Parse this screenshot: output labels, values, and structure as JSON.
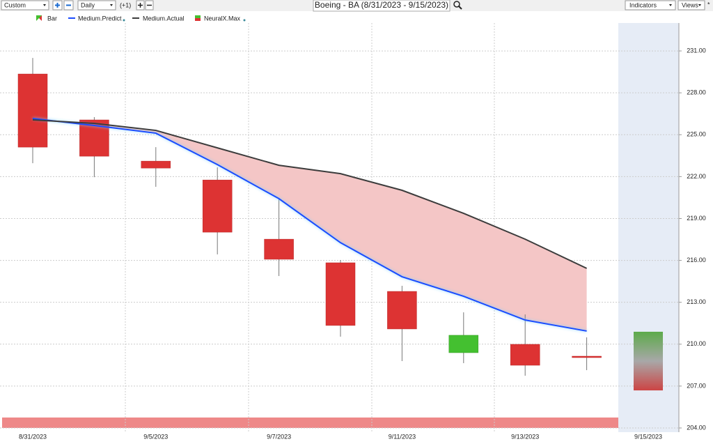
{
  "toolbar": {
    "range": "Custom",
    "interval": "Daily",
    "step": "(+1)",
    "indicators": "Indicators",
    "views": "Views",
    "pin": "*"
  },
  "chart_data": {
    "type": "candlestick",
    "title": "Boeing - BA (8/31/2023 - 9/15/2023)",
    "categories": [
      "8/31/2023",
      null,
      "9/5/2023",
      null,
      "9/7/2023",
      null,
      "9/11/2023",
      null,
      "9/13/2023",
      null,
      "9/15/2023"
    ],
    "candles": {
      "name": "Bar",
      "up_color": "#44c030",
      "down_color": "#dd3333",
      "open": [
        229.35,
        226.06,
        223.11,
        221.76,
        217.52,
        215.83,
        213.78,
        209.39,
        209.99,
        209.14,
        null
      ],
      "high": [
        230.5,
        226.26,
        224.11,
        222.66,
        220.37,
        216.03,
        214.18,
        212.28,
        212.13,
        210.49,
        null
      ],
      "low": [
        222.96,
        221.96,
        221.27,
        216.43,
        214.88,
        210.54,
        208.79,
        208.64,
        207.74,
        208.14,
        null
      ],
      "close": [
        224.11,
        223.46,
        222.61,
        218.02,
        216.08,
        211.34,
        211.09,
        210.64,
        208.49,
        209.14,
        null
      ]
    },
    "series": [
      {
        "name": "Medium.Predict",
        "color": "#1a4cff",
        "values": [
          226.16,
          225.66,
          225.11,
          222.86,
          220.42,
          217.27,
          214.83,
          213.43,
          211.73,
          210.94,
          null
        ]
      },
      {
        "name": "Medium.Actual",
        "color": "#3c3c3c",
        "values": [
          226.06,
          225.81,
          225.31,
          224.06,
          222.81,
          222.21,
          221.02,
          219.37,
          217.52,
          215.43,
          null
        ]
      }
    ],
    "forecast": {
      "name": "NeuralX.Max",
      "high": [
        null,
        null,
        null,
        null,
        null,
        null,
        null,
        null,
        null,
        null,
        210.89
      ],
      "low": [
        null,
        null,
        null,
        null,
        null,
        null,
        null,
        null,
        null,
        null,
        206.69
      ]
    },
    "fill_color": "#f4c6c6",
    "ylim": [
      203.7,
      233
    ],
    "yticks": [
      {
        "value": 204,
        "label": "204.00"
      },
      {
        "value": 207,
        "label": "207.00"
      },
      {
        "value": 210,
        "label": "210.00"
      },
      {
        "value": 213,
        "label": "213.00"
      },
      {
        "value": 216,
        "label": "216.00"
      },
      {
        "value": 219,
        "label": "219.00"
      },
      {
        "value": 222,
        "label": "222.00"
      },
      {
        "value": 225,
        "label": "225.00"
      },
      {
        "value": 228,
        "label": "228.00"
      },
      {
        "value": 231,
        "label": "231.00"
      }
    ],
    "grid": true
  }
}
